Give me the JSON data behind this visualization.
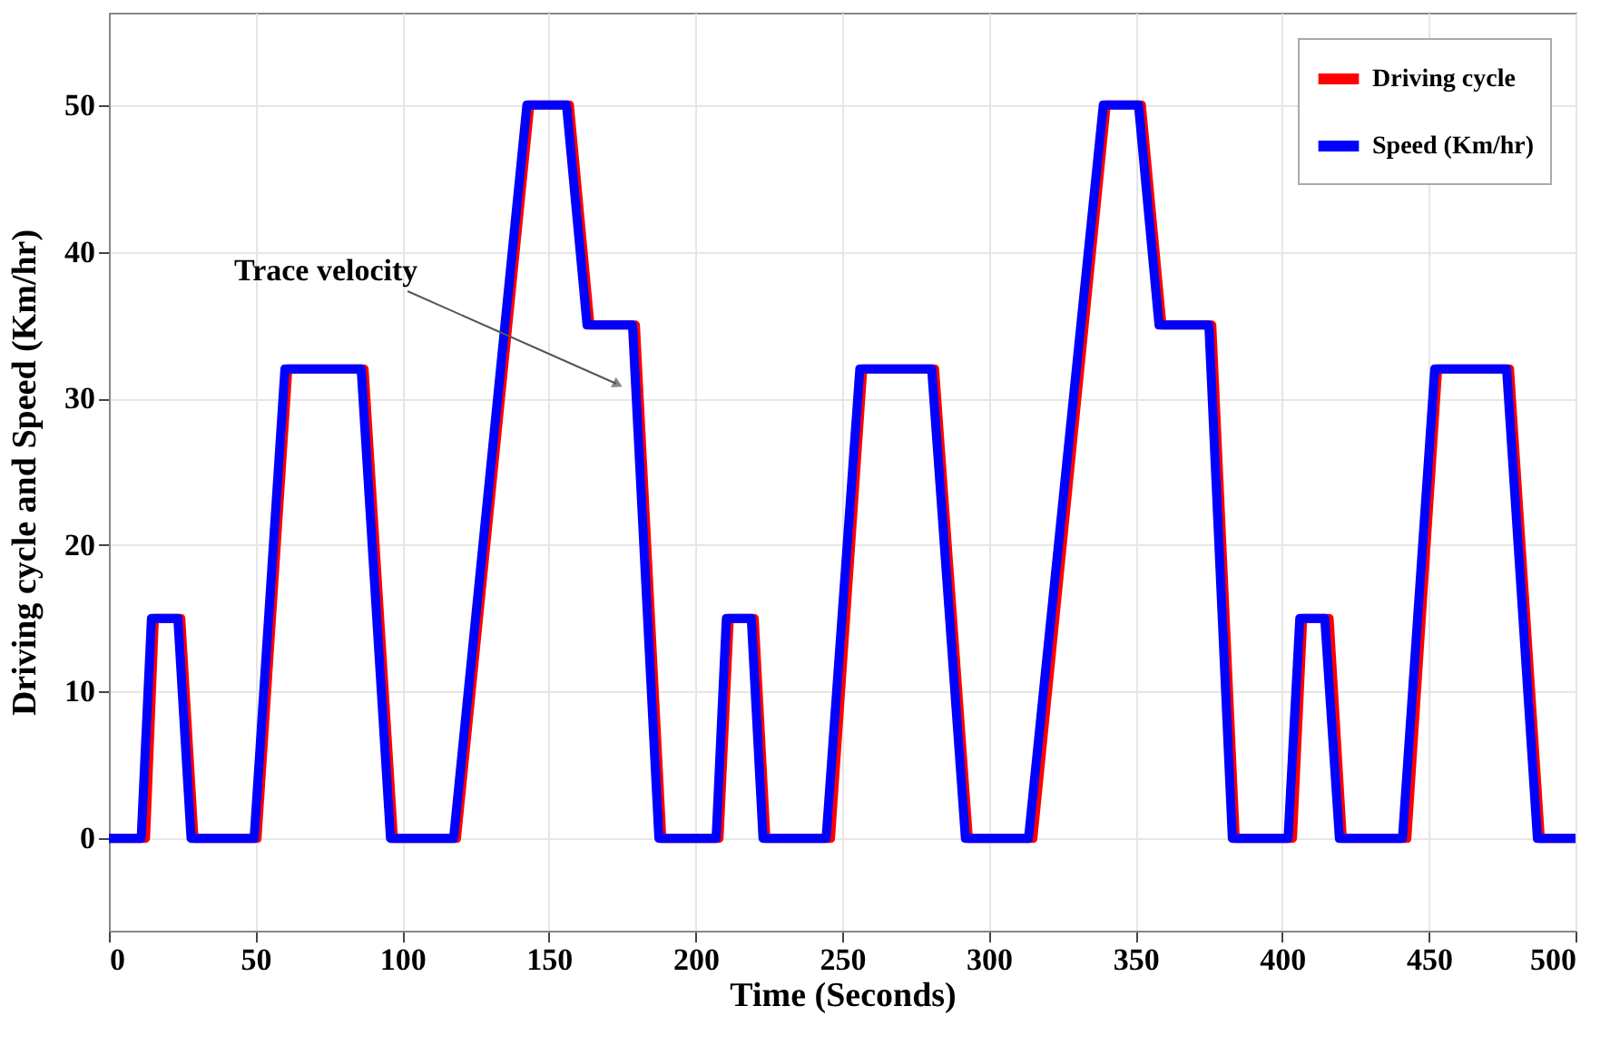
{
  "chart_data": {
    "type": "line",
    "xlabel": "Time (Seconds)",
    "ylabel": "Driving cycle and Speed (Km/hr)",
    "xlim": [
      0,
      500
    ],
    "ylim": [
      -6.3,
      56.3
    ],
    "xticks": [
      0,
      50,
      100,
      150,
      200,
      250,
      300,
      350,
      400,
      450,
      500
    ],
    "yticks": [
      0,
      10,
      20,
      30,
      40,
      50
    ],
    "grid": true,
    "legend": "top right",
    "line_style": "solid",
    "marker": "none",
    "annotations": [
      {
        "text": "Trace velocity",
        "x": 173,
        "y": 31
      }
    ],
    "series": [
      {
        "name": "Driving cycle",
        "color": "#ff0000",
        "x": [
          0,
          12.5,
          15.5,
          24.5,
          29,
          50.5,
          61,
          87,
          97,
          118.5,
          143.5,
          157,
          164,
          179.5,
          188.5,
          208,
          211.5,
          220,
          224,
          246,
          257,
          281.5,
          293,
          315,
          340,
          352,
          359,
          376,
          384,
          403.5,
          407,
          416,
          420.5,
          442.5,
          453,
          477.5,
          488,
          500
        ],
        "values": [
          0,
          0,
          15,
          15,
          0,
          0,
          32,
          32,
          0,
          0,
          50,
          50,
          35,
          35,
          0,
          0,
          15,
          15,
          0,
          0,
          32,
          32,
          0,
          0,
          50,
          50,
          35,
          35,
          0,
          0,
          15,
          15,
          0,
          0,
          32,
          32,
          0,
          0
        ]
      },
      {
        "name": "Speed (Km/hr)",
        "color": "#0000ff",
        "x": [
          0,
          11,
          14.5,
          23.5,
          28,
          49.5,
          60,
          86,
          96,
          117.5,
          142.5,
          156,
          163,
          178.5,
          187.5,
          207,
          210.5,
          219,
          223,
          244.5,
          256,
          280.5,
          292,
          313.5,
          339,
          351,
          358,
          375,
          383,
          402,
          406,
          414.5,
          419.5,
          441,
          452,
          476.5,
          487,
          500
        ],
        "values": [
          0,
          0,
          15,
          15,
          0,
          0,
          32,
          32,
          0,
          0,
          50,
          50,
          35,
          35,
          0,
          0,
          15,
          15,
          0,
          0,
          32,
          32,
          0,
          0,
          50,
          50,
          35,
          35,
          0,
          0,
          15,
          15,
          0,
          0,
          32,
          32,
          0,
          0
        ]
      }
    ]
  }
}
